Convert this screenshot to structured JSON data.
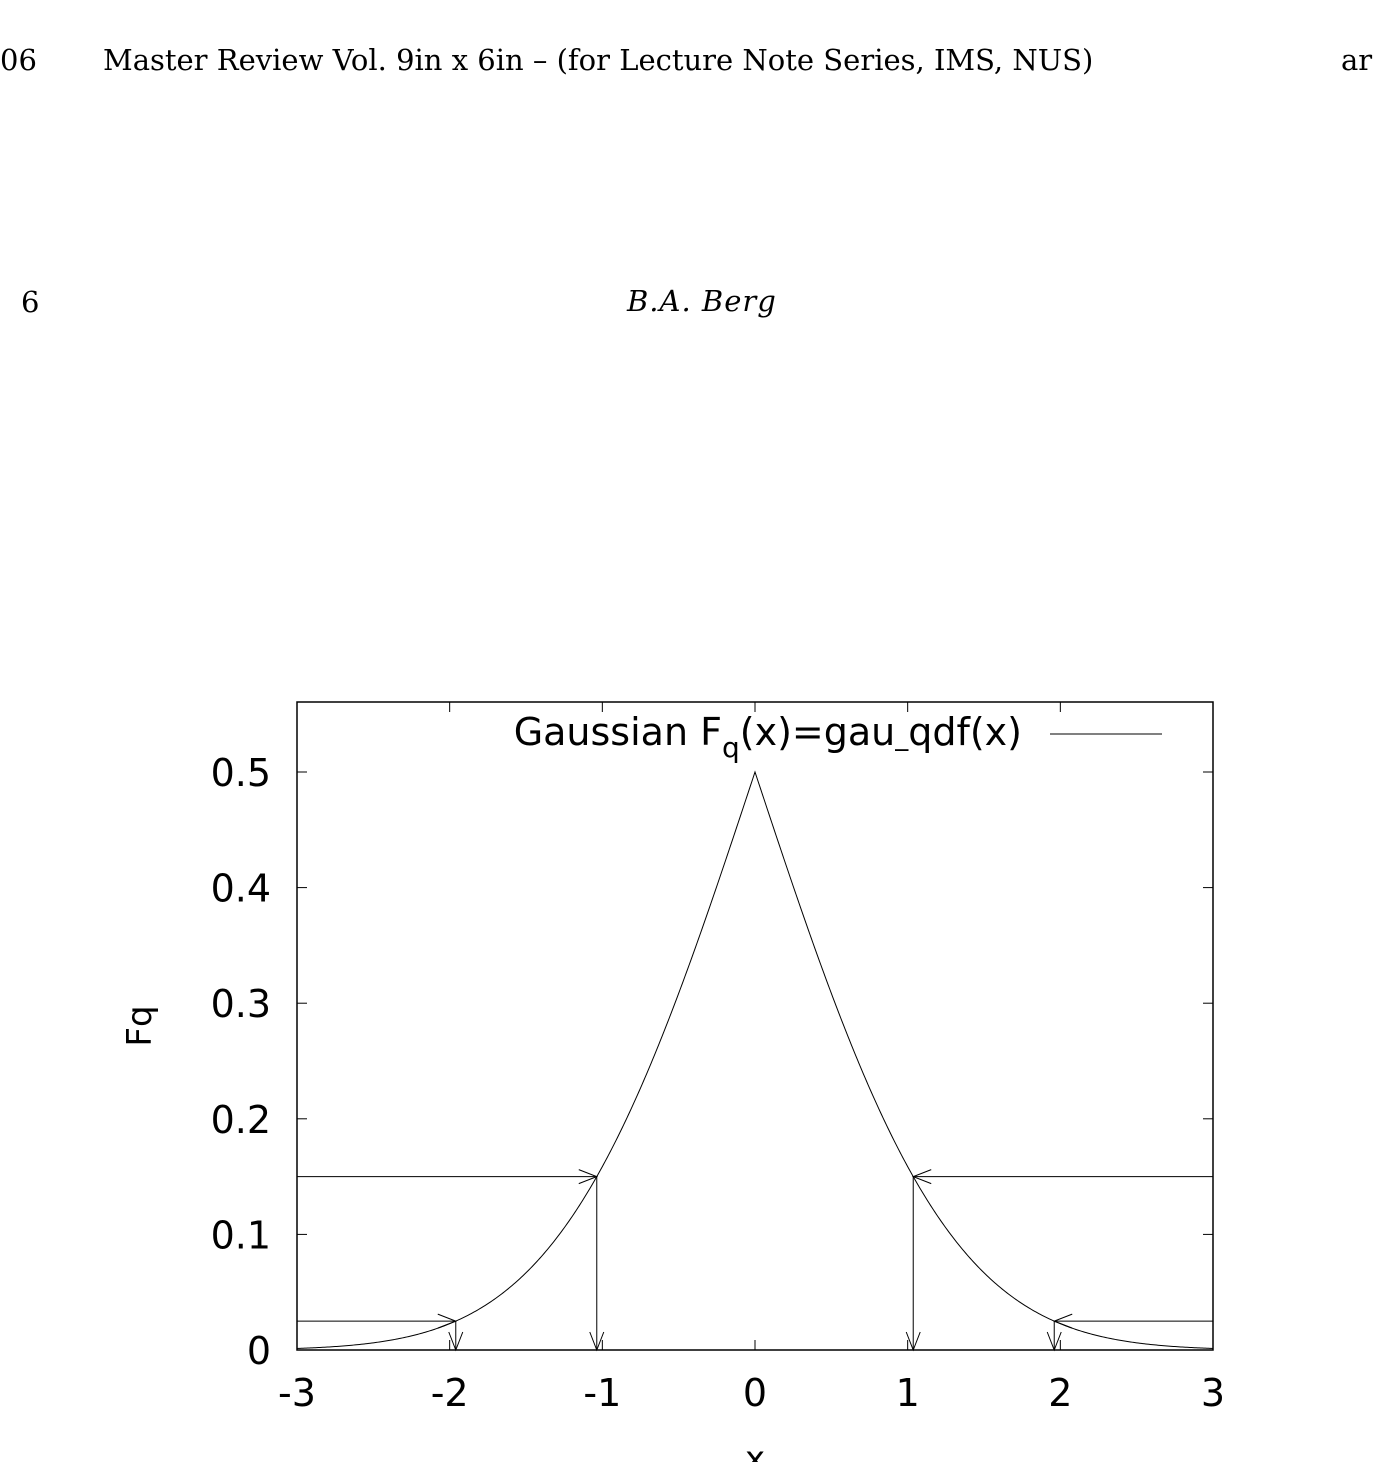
{
  "page_header": {
    "left_fragment": "06",
    "running_title": "Master Review Vol. 9in x 6in – (for Lecture Note Series, IMS, NUS)",
    "right_fragment": "ar"
  },
  "page": {
    "number": "6",
    "author": "B.A. Berg"
  },
  "chart_data": {
    "type": "line",
    "xlabel": "x",
    "ylabel": "Fq",
    "xlim": [
      -3,
      3
    ],
    "ylim": [
      0,
      0.56
    ],
    "x_ticks": [
      "-3",
      "-2",
      "-1",
      "0",
      "1",
      "2",
      "3"
    ],
    "y_ticks": [
      "0",
      "0.1",
      "0.2",
      "0.3",
      "0.4",
      "0.5"
    ],
    "legend_position": "top",
    "legend": {
      "prefix": "Gaussian F",
      "subscript": "q",
      "suffix": "(x)=gau",
      "underscore": "_",
      "tail": "qdf(x)"
    },
    "series": [
      {
        "function": "peaked cumulative distribution: min(F(x), 1-F(x)), F = standard normal CDF",
        "points": [
          {
            "x": -3.0,
            "y": 0.0013
          },
          {
            "x": -2.5,
            "y": 0.0062
          },
          {
            "x": -2.0,
            "y": 0.0228
          },
          {
            "x": -1.5,
            "y": 0.0668
          },
          {
            "x": -1.0,
            "y": 0.1587
          },
          {
            "x": -0.5,
            "y": 0.3085
          },
          {
            "x": 0.0,
            "y": 0.5
          },
          {
            "x": 0.5,
            "y": 0.3085
          },
          {
            "x": 1.0,
            "y": 0.1587
          },
          {
            "x": 1.5,
            "y": 0.0668
          },
          {
            "x": 2.0,
            "y": 0.0228
          },
          {
            "x": 2.5,
            "y": 0.0062
          },
          {
            "x": 3.0,
            "y": 0.0013
          }
        ]
      }
    ],
    "arrows": [
      {
        "side": "left",
        "level": 0.15,
        "x_hit": -1.0364
      },
      {
        "side": "left",
        "level": 0.025,
        "x_hit": -1.96
      },
      {
        "side": "right",
        "level": 0.15,
        "x_hit": 1.0364
      },
      {
        "side": "right",
        "level": 0.025,
        "x_hit": 1.96
      }
    ]
  }
}
